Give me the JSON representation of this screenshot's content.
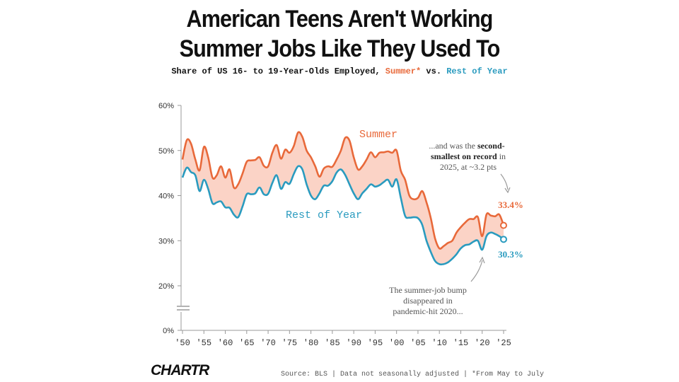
{
  "header": {
    "title_line1": "American Teens Aren't Working",
    "title_line2": "Summer Jobs Like They Used To",
    "subtitle_prefix": "Share of US 16- to 19-Year-Olds Employed,",
    "subtitle_summer": "Summer*",
    "subtitle_mid": "vs.",
    "subtitle_rest": "Rest of Year"
  },
  "footer": {
    "logo": "CHARTR",
    "source": "Source: BLS | Data not seasonally adjusted | *From May to July"
  },
  "colors": {
    "summer": "#e8693a",
    "rest": "#2a9bbf",
    "fill": "#fbd3c6",
    "axis": "#999999",
    "note": "#555555"
  },
  "chart_data": {
    "type": "line",
    "x_tick_labels": [
      "'50",
      "'55",
      "'60",
      "'65",
      "'70",
      "'75",
      "'80",
      "'85",
      "'90",
      "'95",
      "'00",
      "'05",
      "'10",
      "'15",
      "'20",
      "'25"
    ],
    "x_tick_values": [
      1950,
      1955,
      1960,
      1965,
      1970,
      1975,
      1980,
      1985,
      1990,
      1995,
      2000,
      2005,
      2010,
      2015,
      2020,
      2025
    ],
    "y_tick_labels": [
      "60%",
      "50%",
      "40%",
      "30%",
      "20%",
      "0%"
    ],
    "y_tick_values": [
      60,
      50,
      40,
      30,
      20,
      0
    ],
    "ylim": [
      0,
      60
    ],
    "xlim": [
      1950,
      2025
    ],
    "axis_break": true,
    "series": [
      {
        "name": "Summer",
        "x": [
          1950,
          1951,
          1952,
          1953,
          1954,
          1955,
          1956,
          1957,
          1958,
          1959,
          1960,
          1961,
          1962,
          1963,
          1964,
          1965,
          1966,
          1967,
          1968,
          1969,
          1970,
          1971,
          1972,
          1973,
          1974,
          1975,
          1976,
          1977,
          1978,
          1979,
          1980,
          1981,
          1982,
          1983,
          1984,
          1985,
          1986,
          1987,
          1988,
          1989,
          1990,
          1991,
          1992,
          1993,
          1994,
          1995,
          1996,
          1997,
          1998,
          1999,
          2000,
          2001,
          2002,
          2003,
          2004,
          2005,
          2006,
          2007,
          2008,
          2009,
          2010,
          2011,
          2012,
          2013,
          2014,
          2015,
          2016,
          2017,
          2018,
          2019,
          2020,
          2021,
          2022,
          2023,
          2024,
          2025
        ],
        "y": [
          48.0,
          52.3,
          51.5,
          48.0,
          45.6,
          50.8,
          48.5,
          44.0,
          44.5,
          46.5,
          44.0,
          45.8,
          41.8,
          42.5,
          44.8,
          47.5,
          47.8,
          47.9,
          48.5,
          46.6,
          46.5,
          49.5,
          51.2,
          48.2,
          50.2,
          49.5,
          51.0,
          54.0,
          53.0,
          50.0,
          48.5,
          46.5,
          44.2,
          46.0,
          46.5,
          46.4,
          48.0,
          50.0,
          52.8,
          52.2,
          48.5,
          45.8,
          46.5,
          48.0,
          49.6,
          48.5,
          49.5,
          49.6,
          49.8,
          49.5,
          50.0,
          45.5,
          43.5,
          40.0,
          39.2,
          39.5,
          41.0,
          38.5,
          35.0,
          30.5,
          28.3,
          28.8,
          29.5,
          30.0,
          31.8,
          33.0,
          34.0,
          34.8,
          34.8,
          35.2,
          31.0,
          35.8,
          35.6,
          35.4,
          35.8,
          33.4
        ]
      },
      {
        "name": "Rest of Year",
        "x": [
          1950,
          1951,
          1952,
          1953,
          1954,
          1955,
          1956,
          1957,
          1958,
          1959,
          1960,
          1961,
          1962,
          1963,
          1964,
          1965,
          1966,
          1967,
          1968,
          1969,
          1970,
          1971,
          1972,
          1973,
          1974,
          1975,
          1976,
          1977,
          1978,
          1979,
          1980,
          1981,
          1982,
          1983,
          1984,
          1985,
          1986,
          1987,
          1988,
          1989,
          1990,
          1991,
          1992,
          1993,
          1994,
          1995,
          1996,
          1997,
          1998,
          1999,
          2000,
          2001,
          2002,
          2003,
          2004,
          2005,
          2006,
          2007,
          2008,
          2009,
          2010,
          2011,
          2012,
          2013,
          2014,
          2015,
          2016,
          2017,
          2018,
          2019,
          2020,
          2021,
          2022,
          2023,
          2024,
          2025
        ],
        "y": [
          44.0,
          46.2,
          45.2,
          44.5,
          41.0,
          43.5,
          41.5,
          38.3,
          38.5,
          38.7,
          37.4,
          37.3,
          35.8,
          35.2,
          37.5,
          40.3,
          40.3,
          40.5,
          41.8,
          40.3,
          40.4,
          42.8,
          44.5,
          41.5,
          43.0,
          42.6,
          44.8,
          46.5,
          45.8,
          42.5,
          40.0,
          39.2,
          40.5,
          42.2,
          42.2,
          43.2,
          45.1,
          45.8,
          44.6,
          42.5,
          40.5,
          39.2,
          40.5,
          41.5,
          42.5,
          42.0,
          42.3,
          43.0,
          43.5,
          42.0,
          43.6,
          39.5,
          35.5,
          35.1,
          35.2,
          35.0,
          33.5,
          30.0,
          27.5,
          25.5,
          24.8,
          24.8,
          25.2,
          26.0,
          27.0,
          28.3,
          29.0,
          29.2,
          29.8,
          30.0,
          28.0,
          31.0,
          31.8,
          31.5,
          31.0,
          30.3
        ]
      }
    ],
    "series_labels": {
      "summer": "Summer",
      "rest": "Rest of Year"
    },
    "end_labels": {
      "summer": "33.4%",
      "rest": "30.3%"
    },
    "annotations": {
      "top": {
        "line1": "...and was the ",
        "line1_bold": "second-",
        "line2_bold": "smallest on record",
        "line2": " in",
        "line3": "2025, at ~3.2 pts"
      },
      "bottom": {
        "line1": "The summer-job bump",
        "line2": "disappeared in",
        "line3": "pandemic-hit 2020..."
      }
    }
  }
}
